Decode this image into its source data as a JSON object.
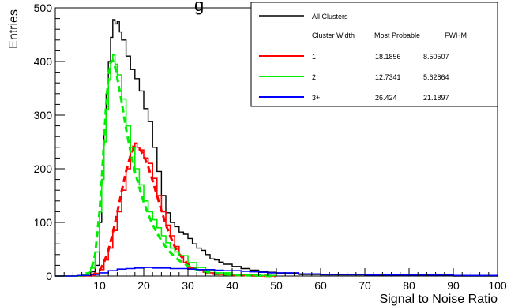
{
  "chart_data": {
    "type": "line",
    "title_fragment": "g",
    "xlabel": "Signal to Noise Ratio",
    "ylabel": "Entries",
    "xlim": [
      0,
      100
    ],
    "ylim": [
      0,
      500
    ],
    "x_ticks": [
      10,
      20,
      30,
      40,
      50,
      60,
      70,
      80,
      90,
      100
    ],
    "y_ticks": [
      0,
      100,
      200,
      300,
      400,
      500
    ],
    "grid": false,
    "legend_position": "top-right",
    "legend": {
      "header_entry": "All Clusters",
      "columns": [
        "Cluster Width",
        "Most Probable",
        "FWHM"
      ],
      "rows": [
        {
          "width": "1",
          "mp": "18.1856",
          "fwhm": "8.50507",
          "color": "#ff0000"
        },
        {
          "width": "2",
          "mp": "12.7341",
          "fwhm": "5.62864",
          "color": "#00ee00"
        },
        {
          "width": "3+",
          "mp": "26.424",
          "fwhm": "21.1897",
          "color": "#0000ff"
        }
      ]
    },
    "series": [
      {
        "name": "All Clusters",
        "color": "#000000",
        "style": "step",
        "x": [
          0,
          6,
          7,
          8,
          9,
          10,
          10.5,
          11,
          11.5,
          12,
          12.5,
          13,
          13.5,
          14,
          14.5,
          15,
          16,
          17,
          18,
          19,
          20,
          21,
          22,
          23,
          24,
          25,
          26,
          27,
          28,
          29,
          30,
          31,
          32,
          33,
          34,
          35,
          36,
          37,
          38,
          40,
          42,
          44,
          46,
          48,
          50,
          55,
          60,
          70,
          80,
          90,
          100
        ],
        "values": [
          0,
          2,
          4,
          8,
          20,
          100,
          180,
          270,
          340,
          400,
          445,
          478,
          470,
          475,
          455,
          440,
          410,
          385,
          368,
          345,
          312,
          288,
          240,
          195,
          150,
          118,
          100,
          92,
          82,
          78,
          70,
          60,
          52,
          48,
          40,
          32,
          30,
          26,
          22,
          18,
          14,
          11,
          9,
          7,
          5,
          3,
          2,
          1,
          1,
          0,
          0
        ]
      },
      {
        "name": "1",
        "color": "#ff0000",
        "style": "step",
        "x": [
          0,
          8,
          9,
          10,
          11,
          12,
          13,
          14,
          15,
          16,
          17,
          17.5,
          18,
          18.5,
          19,
          20,
          21,
          22,
          23,
          24,
          25,
          26,
          27,
          28,
          29,
          30,
          32,
          34,
          36,
          40,
          45,
          50
        ],
        "values": [
          0,
          1,
          5,
          12,
          30,
          52,
          85,
          120,
          160,
          200,
          232,
          242,
          248,
          240,
          235,
          220,
          210,
          182,
          150,
          120,
          95,
          75,
          55,
          38,
          25,
          15,
          10,
          6,
          3,
          1,
          0,
          0
        ]
      },
      {
        "name": "1 fit",
        "color": "#ff0000",
        "style": "dashed",
        "x": [
          8,
          10,
          11,
          12,
          13,
          14,
          15,
          16,
          17,
          18,
          19,
          20,
          21,
          22,
          23,
          24,
          25,
          26,
          27,
          28,
          30,
          32,
          34,
          36,
          40,
          45,
          50
        ],
        "values": [
          0,
          10,
          25,
          48,
          80,
          118,
          158,
          195,
          225,
          240,
          238,
          225,
          204,
          178,
          150,
          122,
          96,
          74,
          55,
          41,
          22,
          12,
          7,
          4,
          2,
          1,
          0
        ]
      },
      {
        "name": "2",
        "color": "#00ee00",
        "style": "step",
        "x": [
          0,
          6,
          7,
          8,
          9,
          10,
          10.5,
          11,
          11.5,
          12,
          12.5,
          13,
          13.5,
          14,
          15,
          16,
          17,
          18,
          19,
          20,
          21,
          22,
          23,
          24,
          25,
          26,
          27,
          28,
          30,
          32,
          34,
          36,
          40,
          45,
          50
        ],
        "values": [
          0,
          2,
          6,
          15,
          45,
          120,
          180,
          250,
          310,
          365,
          400,
          412,
          395,
          375,
          330,
          280,
          240,
          200,
          170,
          140,
          120,
          105,
          90,
          75,
          62,
          52,
          45,
          38,
          25,
          16,
          10,
          6,
          3,
          1,
          0
        ]
      },
      {
        "name": "2 fit",
        "color": "#00ee00",
        "style": "dashed",
        "x": [
          7,
          8,
          9,
          10,
          10.5,
          11,
          11.5,
          12,
          12.5,
          13,
          13.5,
          14,
          15,
          16,
          17,
          18,
          19,
          20,
          21,
          22,
          23,
          24,
          25,
          26,
          27,
          28,
          30,
          32,
          34,
          36,
          40,
          45,
          50
        ],
        "values": [
          0,
          8,
          40,
          120,
          180,
          250,
          320,
          370,
          398,
          402,
          390,
          370,
          325,
          275,
          232,
          195,
          165,
          138,
          115,
          96,
          80,
          66,
          54,
          44,
          36,
          29,
          19,
          12,
          8,
          5,
          2,
          1,
          0
        ]
      },
      {
        "name": "3+",
        "color": "#0000ff",
        "style": "step",
        "x": [
          0,
          5,
          8,
          10,
          12,
          14,
          16,
          18,
          20,
          22,
          24,
          26,
          28,
          30,
          32,
          34,
          36,
          38,
          40,
          42,
          44,
          46,
          48,
          50,
          55,
          60,
          70,
          80,
          90,
          100
        ],
        "values": [
          0,
          1,
          3,
          6,
          10,
          13,
          14,
          15,
          16,
          15,
          15,
          14,
          14,
          13,
          12,
          12,
          11,
          10,
          10,
          9,
          8,
          7,
          6,
          6,
          4,
          3,
          2,
          2,
          1,
          1
        ]
      }
    ]
  }
}
